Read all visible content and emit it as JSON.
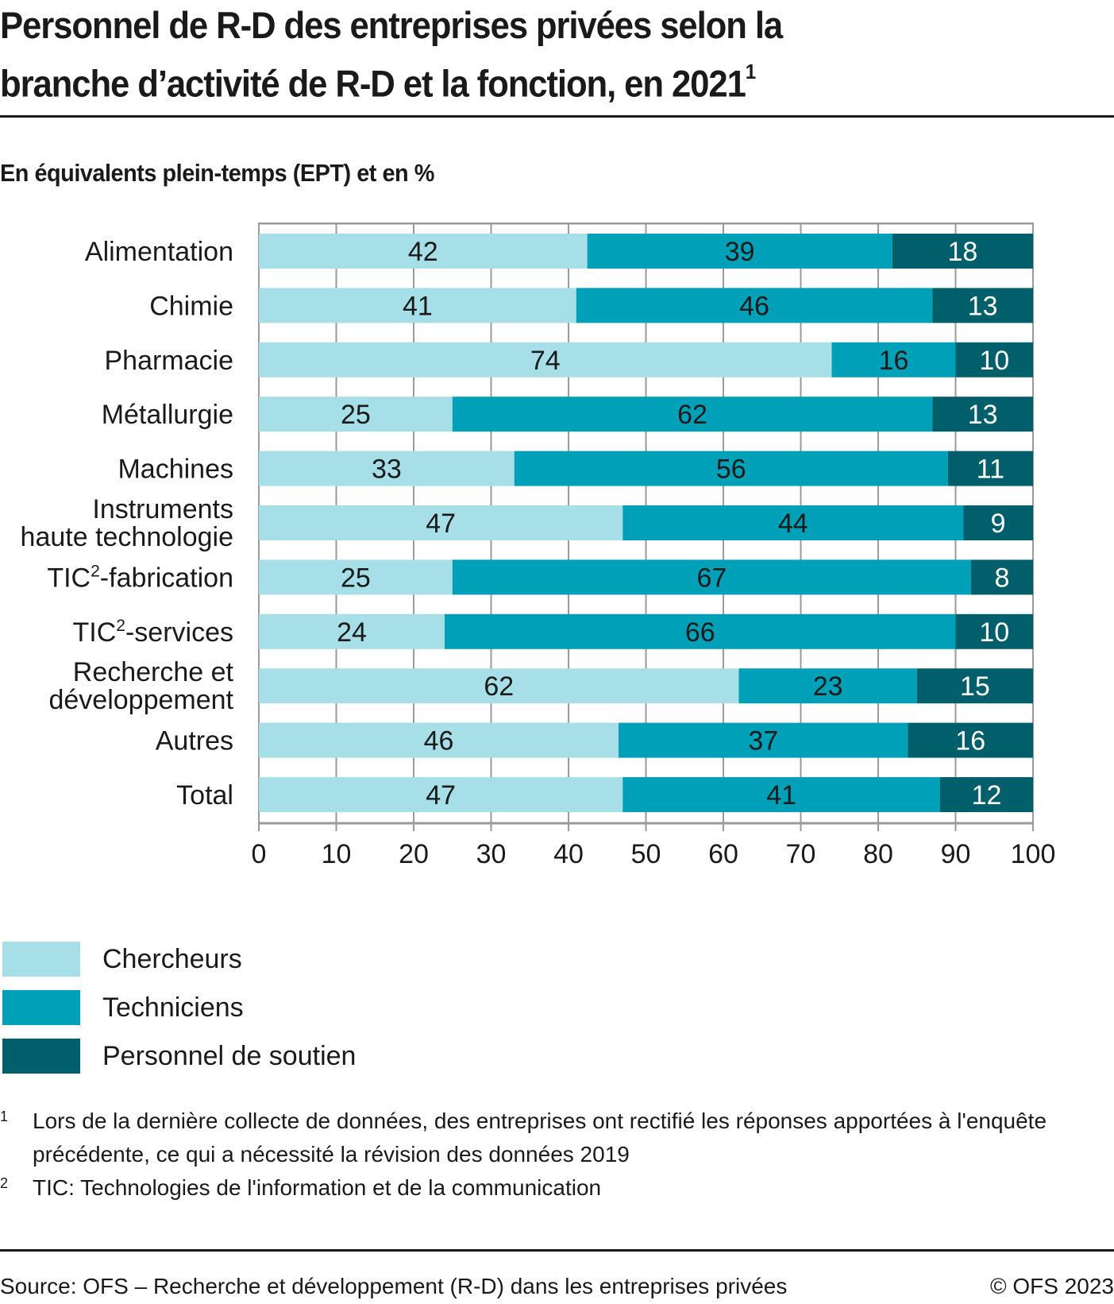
{
  "header": {
    "title_line1": "Personnel de R-D des entreprises privées selon la",
    "title_line2": "branche d’activité de R-D et la fonction, en 2021",
    "title_footnote_mark": "1",
    "subtitle": "En équivalents plein-temps (EPT) et en %"
  },
  "chart_data": {
    "type": "bar",
    "orientation": "horizontal",
    "stacked": true,
    "title": "Personnel de R-D des entreprises privées selon la branche d’activité de R-D et la fonction, en 2021",
    "subtitle": "En équivalents plein-temps (EPT) et en %",
    "xlabel": "",
    "ylabel": "",
    "xlim": [
      0,
      100
    ],
    "xticks": [
      0,
      10,
      20,
      30,
      40,
      50,
      60,
      70,
      80,
      90,
      100
    ],
    "grid": true,
    "legend_position": "bottom-left",
    "categories": [
      {
        "lines": [
          "Alimentation"
        ]
      },
      {
        "lines": [
          "Chimie"
        ]
      },
      {
        "lines": [
          "Pharmacie"
        ]
      },
      {
        "lines": [
          "Métallurgie"
        ]
      },
      {
        "lines": [
          "Machines"
        ]
      },
      {
        "lines": [
          "Instruments",
          "haute technologie"
        ]
      },
      {
        "lines": [
          "TIC",
          "-fabrication"
        ],
        "sup": "2"
      },
      {
        "lines": [
          "TIC",
          "-services"
        ],
        "sup": "2"
      },
      {
        "lines": [
          "Recherche et",
          "développement"
        ]
      },
      {
        "lines": [
          "Autres"
        ]
      },
      {
        "lines": [
          "Total"
        ]
      }
    ],
    "series": [
      {
        "name": "Chercheurs",
        "color": "#a6dfe7",
        "label_color": "#1a1a1a",
        "values": [
          42,
          41,
          74,
          25,
          33,
          47,
          25,
          24,
          62,
          46,
          47
        ]
      },
      {
        "name": "Techniciens",
        "color": "#00a1b8",
        "label_color": "#1a1a1a",
        "values": [
          39,
          46,
          16,
          62,
          56,
          44,
          67,
          66,
          23,
          37,
          41
        ]
      },
      {
        "name": "Personnel de soutien",
        "color": "#005f6b",
        "label_color": "#ffffff",
        "values": [
          18,
          13,
          10,
          13,
          11,
          9,
          8,
          10,
          15,
          16,
          12
        ]
      }
    ]
  },
  "legend": [
    {
      "label": "Chercheurs",
      "color": "#a6dfe7"
    },
    {
      "label": "Techniciens",
      "color": "#00a1b8"
    },
    {
      "label": "Personnel de soutien",
      "color": "#005f6b"
    }
  ],
  "footnotes": [
    {
      "mark": "1",
      "text": "Lors de la dernière collecte de données, des entreprises ont rectifié les réponses apportées à l'enquête précédente, ce qui a nécessité la révision des données 2019"
    },
    {
      "mark": "2",
      "text": "TIC: Technologies de l'information et de la communication"
    }
  ],
  "footer": {
    "source": "Source: OFS – Recherche et développement (R-D) dans les entreprises privées",
    "copyright": "© OFS 2023"
  }
}
